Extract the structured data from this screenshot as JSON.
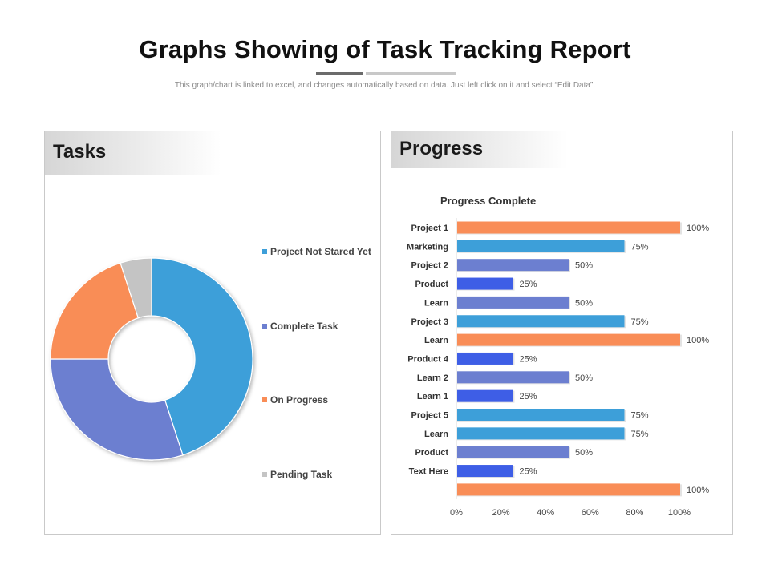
{
  "header": {
    "title": "Graphs Showing of Task Tracking Report",
    "subtitle": "This graph/chart is linked to excel, and changes automatically  based on data. Just left click on it and select “Edit Data”."
  },
  "tasks_panel": {
    "heading": "Tasks"
  },
  "progress_panel": {
    "heading": "Progress"
  },
  "chart_data": [
    {
      "type": "pie",
      "variant": "donut",
      "title": "Tasks",
      "categories": [
        "Project Not Stared Yet",
        "Complete Task",
        "On Progress",
        "Pending Task"
      ],
      "values": [
        45,
        30,
        20,
        5
      ],
      "colors": [
        "#3d9fd9",
        "#6c7fd0",
        "#f98d57",
        "#c4c4c4"
      ],
      "legend": "right"
    },
    {
      "type": "bar",
      "orientation": "horizontal",
      "title": "Progress Complete",
      "categories": [
        "Project 1",
        "Marketing",
        "Project 2",
        "Product",
        "Learn",
        "Project 3",
        "Learn",
        "Product 4",
        "Learn 2",
        "Learn 1",
        "Project 5",
        "Learn",
        "Product",
        "Text Here",
        ""
      ],
      "values": [
        100,
        75,
        50,
        25,
        50,
        75,
        100,
        25,
        50,
        25,
        75,
        75,
        50,
        25,
        100
      ],
      "data_labels": [
        "100%",
        "75%",
        "50%",
        "25%",
        "50%",
        "75%",
        "100%",
        "25%",
        "50%",
        "25%",
        "75%",
        "75%",
        "50%",
        "25%",
        "100%"
      ],
      "xlim": [
        0,
        100
      ],
      "xticks": [
        0,
        20,
        40,
        60,
        80,
        100
      ],
      "xtick_labels": [
        "0%",
        "20%",
        "40%",
        "60%",
        "80%",
        "100%"
      ],
      "colors_by_value": {
        "100": "#f98d57",
        "75": "#3d9fd9",
        "50": "#6c7fd0",
        "25": "#3e5ee6"
      }
    }
  ]
}
